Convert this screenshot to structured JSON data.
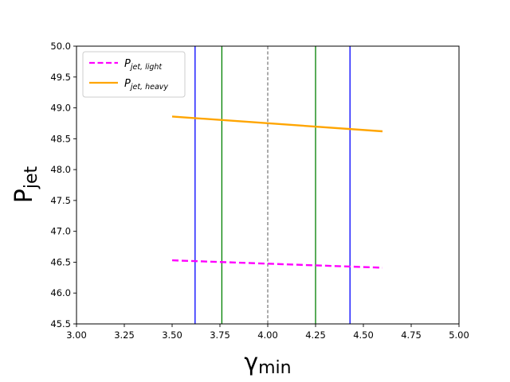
{
  "chart_data": {
    "type": "line",
    "title": "",
    "xlabel_main": "γ",
    "xlabel_sub": "min",
    "ylabel_main": "P",
    "ylabel_sub": "jet",
    "xlim": [
      3.0,
      5.0
    ],
    "ylim": [
      45.5,
      50.0
    ],
    "xticks": [
      "3.00",
      "3.25",
      "3.50",
      "3.75",
      "4.00",
      "4.25",
      "4.50",
      "4.75",
      "5.00"
    ],
    "yticks": [
      "45.5",
      "46.0",
      "46.5",
      "47.0",
      "47.5",
      "48.0",
      "48.5",
      "49.0",
      "49.5",
      "50.0"
    ],
    "series": [
      {
        "name": "P_jet,light",
        "label_main": "P",
        "label_sub": "jet, light",
        "color": "#ff00ff",
        "style": "dashed",
        "x": [
          3.5,
          4.6
        ],
        "y": [
          46.53,
          46.41
        ]
      },
      {
        "name": "P_jet,heavy",
        "label_main": "P",
        "label_sub": "jet, heavy",
        "color": "#ffa500",
        "style": "solid",
        "x": [
          3.5,
          4.6
        ],
        "y": [
          48.86,
          48.62
        ]
      }
    ],
    "vlines": [
      {
        "x": 3.62,
        "color": "#0000ff",
        "style": "solid"
      },
      {
        "x": 4.43,
        "color": "#0000ff",
        "style": "solid"
      },
      {
        "x": 3.76,
        "color": "#008000",
        "style": "solid"
      },
      {
        "x": 4.25,
        "color": "#008000",
        "style": "solid"
      },
      {
        "x": 4.0,
        "color": "#808080",
        "style": "dashed"
      }
    ],
    "legend_position": "top-left"
  }
}
